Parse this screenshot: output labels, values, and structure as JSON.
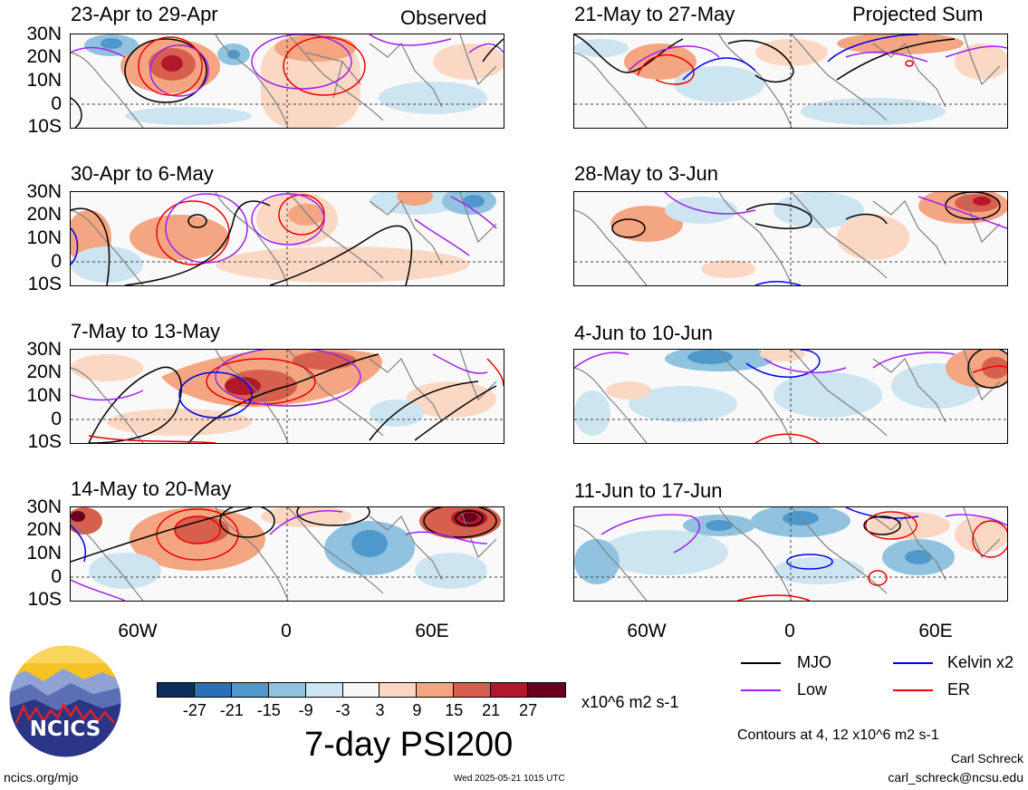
{
  "headers": {
    "left": "Observed",
    "right": "Projected Sum"
  },
  "panels": [
    {
      "title": "23-Apr to 29-Apr"
    },
    {
      "title": "30-Apr to 6-May"
    },
    {
      "title": "7-May to 13-May"
    },
    {
      "title": "14-May to 20-May"
    },
    {
      "title": "21-May to 27-May"
    },
    {
      "title": "28-May to 3-Jun"
    },
    {
      "title": "4-Jun to 10-Jun"
    },
    {
      "title": "11-Jun to 17-Jun"
    }
  ],
  "lat_labels": [
    "30N",
    "20N",
    "10N",
    "0",
    "10S"
  ],
  "lon_labels": [
    "60W",
    "0",
    "60E"
  ],
  "colorbar": {
    "colors": [
      "#0b2e5e",
      "#2a6fb5",
      "#4f98cc",
      "#91c3e0",
      "#cde4f1",
      "#f7f7f7",
      "#fbd8c3",
      "#f4a582",
      "#d6604d",
      "#b2182b",
      "#67001f"
    ],
    "tick_labels": [
      "-27",
      "-21",
      "-15",
      "-9",
      "-3",
      "3",
      "9",
      "15",
      "21",
      "27"
    ],
    "units": "x10^6 m2 s-1",
    "title": "7-day PSI200"
  },
  "legend": {
    "items": [
      {
        "label": "MJO",
        "color": "#000000"
      },
      {
        "label": "Kelvin x2",
        "color": "#0000ee"
      },
      {
        "label": "Low",
        "color": "#a020f0"
      },
      {
        "label": "ER",
        "color": "#ee0000"
      }
    ],
    "contours_note": "Contours at 4, 12 x10^6 m2 s-1"
  },
  "logo": {
    "text": "NCICS"
  },
  "footer": {
    "url": "ncics.org/mjo",
    "timestamp": "Wed 2025-05-21 1015 UTC",
    "author": "Carl Schreck",
    "email": "carl_schreck@ncsu.edu"
  }
}
